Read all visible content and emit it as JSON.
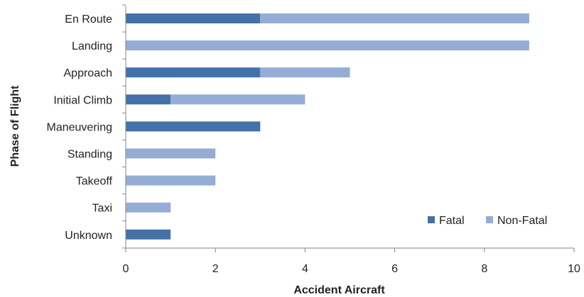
{
  "chart_data": {
    "type": "bar",
    "orientation": "horizontal",
    "stacked": true,
    "categories": [
      "En Route",
      "Landing",
      "Approach",
      "Initial Climb",
      "Maneuvering",
      "Standing",
      "Takeoff",
      "Taxi",
      "Unknown"
    ],
    "series": [
      {
        "name": "Fatal",
        "color": "#4472a8",
        "values": [
          3,
          0,
          3,
          1,
          3,
          0,
          0,
          0,
          1
        ]
      },
      {
        "name": "Non-Fatal",
        "color": "#95add4",
        "values": [
          6,
          9,
          2,
          3,
          0,
          2,
          2,
          1,
          0
        ]
      }
    ],
    "xlabel": "Accident Aircraft",
    "ylabel": "Phase of Flight",
    "xlim": [
      0,
      10
    ],
    "xticks": [
      0,
      2,
      4,
      6,
      8,
      10
    ],
    "grid": false,
    "legend_position": "bottom-right"
  }
}
